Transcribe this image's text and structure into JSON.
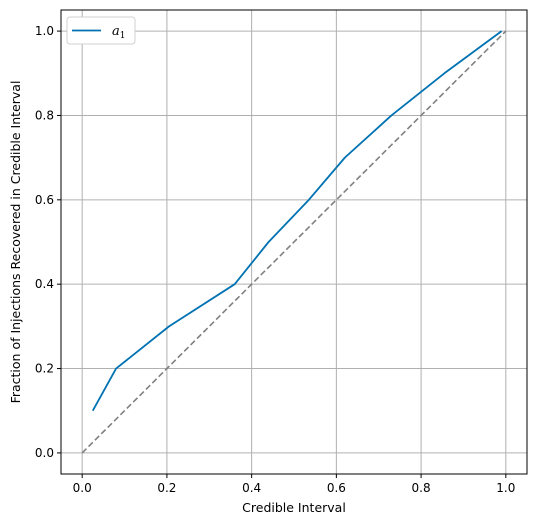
{
  "chart_data": {
    "type": "line",
    "title": "",
    "xlabel": "Credible Interval",
    "ylabel": "Fraction of Injections Recovered in Credible Interval",
    "xlim": [
      -0.05,
      1.05
    ],
    "ylim": [
      -0.05,
      1.05
    ],
    "xticks": [
      0.0,
      0.2,
      0.4,
      0.6,
      0.8,
      1.0
    ],
    "yticks": [
      0.0,
      0.2,
      0.4,
      0.6,
      0.8,
      1.0
    ],
    "xtick_labels": [
      "0.0",
      "0.2",
      "0.4",
      "0.6",
      "0.8",
      "1.0"
    ],
    "ytick_labels": [
      "0.0",
      "0.2",
      "0.4",
      "0.6",
      "0.8",
      "1.0"
    ],
    "grid": true,
    "legend_position": "top-left",
    "series": [
      {
        "name": "a",
        "name_subscript": "1",
        "color": "#0072b2",
        "style": "solid",
        "x": [
          0.025,
          0.08,
          0.205,
          0.36,
          0.44,
          0.535,
          0.62,
          0.73,
          0.855,
          0.99
        ],
        "y": [
          0.1,
          0.2,
          0.3,
          0.4,
          0.5,
          0.6,
          0.7,
          0.8,
          0.9,
          1.0
        ]
      }
    ],
    "reference_line": {
      "color": "#808080",
      "style": "dashed",
      "x": [
        0.0,
        1.0
      ],
      "y": [
        0.0,
        1.0
      ]
    }
  }
}
